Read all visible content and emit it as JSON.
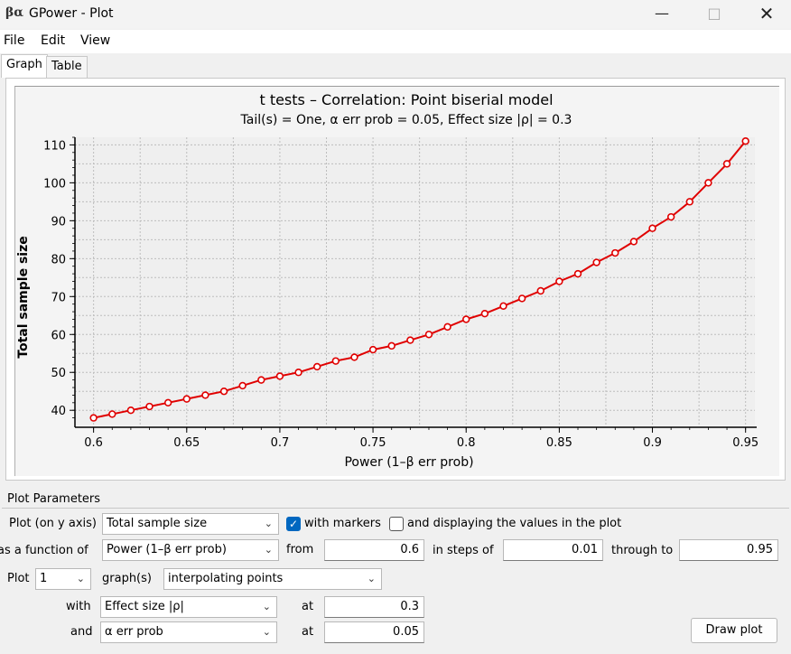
{
  "window": {
    "title": "GPower - Plot",
    "icon_glyph": "βα"
  },
  "menu": {
    "items": [
      "File",
      "Edit",
      "View"
    ]
  },
  "tabs": [
    {
      "label": "Graph",
      "active": true
    },
    {
      "label": "Table",
      "active": false
    }
  ],
  "chart_data": {
    "type": "line",
    "title": "t tests – Correlation: Point biserial model",
    "subtitle": "Tail(s) = One, α err prob = 0.05, Effect size |ρ| = 0.3",
    "xlabel": "Power (1–β err prob)",
    "ylabel": "Total sample size",
    "xlim": [
      0.59,
      0.955
    ],
    "ylim": [
      36,
      112
    ],
    "x_ticks": [
      0.6,
      0.65,
      0.7,
      0.75,
      0.8,
      0.85,
      0.9,
      0.95
    ],
    "x_tick_labels": [
      "0.6",
      "0.65",
      "0.7",
      "0.75",
      "0.8",
      "0.85",
      "0.9",
      "0.95"
    ],
    "y_ticks": [
      40,
      50,
      60,
      70,
      80,
      90,
      100,
      110
    ],
    "y_tick_labels": [
      "40",
      "50",
      "60",
      "70",
      "80",
      "90",
      "100",
      "110"
    ],
    "grid": true,
    "markers": true,
    "color": "#e00000",
    "series": [
      {
        "x": [
          0.6,
          0.61,
          0.62,
          0.63,
          0.64,
          0.65,
          0.66,
          0.67,
          0.68,
          0.69,
          0.7,
          0.71,
          0.72,
          0.73,
          0.74,
          0.75,
          0.76,
          0.77,
          0.78,
          0.79,
          0.8,
          0.81,
          0.82,
          0.83,
          0.84,
          0.85,
          0.86,
          0.87,
          0.88,
          0.89,
          0.9,
          0.91,
          0.92,
          0.93,
          0.94,
          0.95
        ],
        "y": [
          38,
          39,
          40,
          41,
          42,
          43,
          44,
          45,
          46.5,
          48,
          49,
          50,
          51.5,
          53,
          54,
          56,
          57,
          58.5,
          60,
          62,
          64,
          65.5,
          67.5,
          69.5,
          71.5,
          74,
          76,
          79,
          81.5,
          84.5,
          88,
          91,
          95,
          100,
          105,
          111
        ]
      }
    ]
  },
  "params": {
    "group_title": "Plot Parameters",
    "plot_on_y_label": "Plot (on y axis)",
    "plot_on_y_value": "Total sample size",
    "with_markers_label": "with markers",
    "with_markers_checked": true,
    "display_values_label": "and displaying the values in the plot",
    "display_values_checked": false,
    "function_of_label": "as a function of",
    "function_of_value": "Power (1–β err prob)",
    "from_label": "from",
    "from_value": "0.6",
    "steps_label": "in steps of",
    "steps_value": "0.01",
    "through_label": "through to",
    "through_value": "0.95",
    "plot_label": "Plot",
    "plot_count": "1",
    "graphs_label": "graph(s)",
    "graph_mode": "interpolating points",
    "with_label": "with",
    "with_value": "Effect size |ρ|",
    "at_label": "at",
    "with_at_value": "0.3",
    "and_label": "and",
    "and_value": "α err prob",
    "and_at_value": "0.05",
    "draw_button": "Draw plot"
  }
}
